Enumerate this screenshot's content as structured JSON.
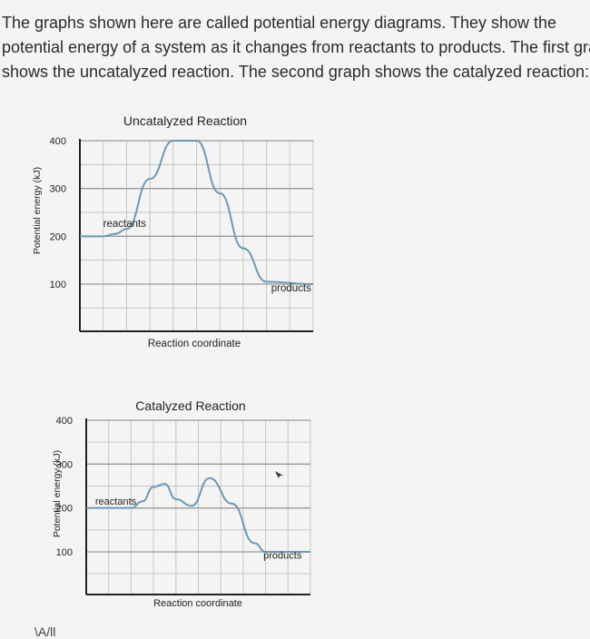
{
  "intro_lines": [
    "The graphs shown here are called potential energy diagrams. They show the",
    "potential energy of a system as it changes from reactants to products. The first gra",
    "shows the uncatalyzed reaction. The second graph shows the catalyzed reaction:"
  ],
  "chart_data": [
    {
      "type": "line",
      "title": "Uncatalyzed Reaction",
      "xlabel": "Reaction coordinate",
      "ylabel": "Potential energy (kJ)",
      "yticks": [
        "400",
        "300",
        "200",
        "100"
      ],
      "ylim": [
        0,
        400
      ],
      "xlim": [
        0,
        10
      ],
      "grid": true,
      "x": [
        0,
        1,
        1.5,
        2,
        3,
        4,
        5,
        6,
        7,
        8,
        10
      ],
      "y": [
        200,
        200,
        205,
        215,
        320,
        400,
        400,
        290,
        175,
        105,
        100
      ],
      "annotations": [
        {
          "text": "reactants",
          "x": 1.0,
          "y": 220
        },
        {
          "text": "products",
          "x": 8.2,
          "y": 85
        }
      ]
    },
    {
      "type": "line",
      "title": "Catalyzed Reaction",
      "xlabel": "Reaction coordinate",
      "ylabel": "Potential energy (kJ)",
      "yticks": [
        "400",
        "300",
        "200",
        "100"
      ],
      "ylim": [
        0,
        400
      ],
      "xlim": [
        0,
        10
      ],
      "grid": true,
      "x": [
        0,
        0.5,
        1.2,
        2,
        2.5,
        3,
        3.5,
        4,
        4.7,
        5.5,
        6.5,
        7.5,
        8,
        10
      ],
      "y": [
        200,
        200,
        200,
        200,
        215,
        248,
        255,
        220,
        205,
        268,
        210,
        120,
        100,
        100
      ],
      "annotations": [
        {
          "text": "reactants",
          "x": 0.4,
          "y": 208
        },
        {
          "text": "products",
          "x": 7.9,
          "y": 85
        }
      ]
    }
  ],
  "colors": {
    "curve": "#6a9ab4",
    "grid": "#c6c6c6",
    "axis": "#222222"
  },
  "footer_text": "\\A/ll"
}
